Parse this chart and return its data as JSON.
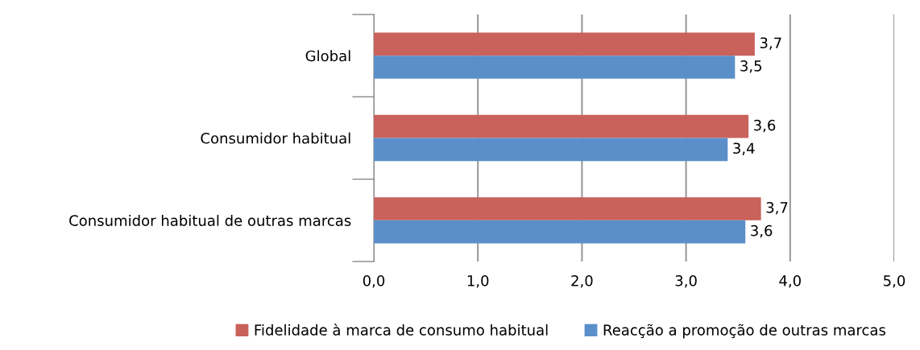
{
  "chart_data": {
    "type": "bar",
    "orientation": "horizontal",
    "categories": [
      "Global",
      "Consumidor habitual",
      "Consumidor habitual de outras marcas"
    ],
    "series": [
      {
        "name": "Fidelidade à marca de consumo habitual",
        "color": "#c9625b",
        "values": [
          3.66,
          3.6,
          3.72
        ],
        "value_labels": [
          "3,7",
          "3,6",
          "3,7"
        ]
      },
      {
        "name": "Reacção a promoção de outras marcas",
        "color": "#5b8fc9",
        "values": [
          3.47,
          3.4,
          3.57
        ],
        "value_labels": [
          "3,5",
          "3,4",
          "3,6"
        ]
      }
    ],
    "xlim": [
      0,
      5
    ],
    "xticks": [
      {
        "value": 0,
        "label": "0,0"
      },
      {
        "value": 1,
        "label": "1,0"
      },
      {
        "value": 2,
        "label": "2,0"
      },
      {
        "value": 3,
        "label": "3,0"
      },
      {
        "value": 4,
        "label": "4,0"
      },
      {
        "value": 5,
        "label": "5,0"
      }
    ],
    "grid": "x",
    "legend": "bottom"
  }
}
